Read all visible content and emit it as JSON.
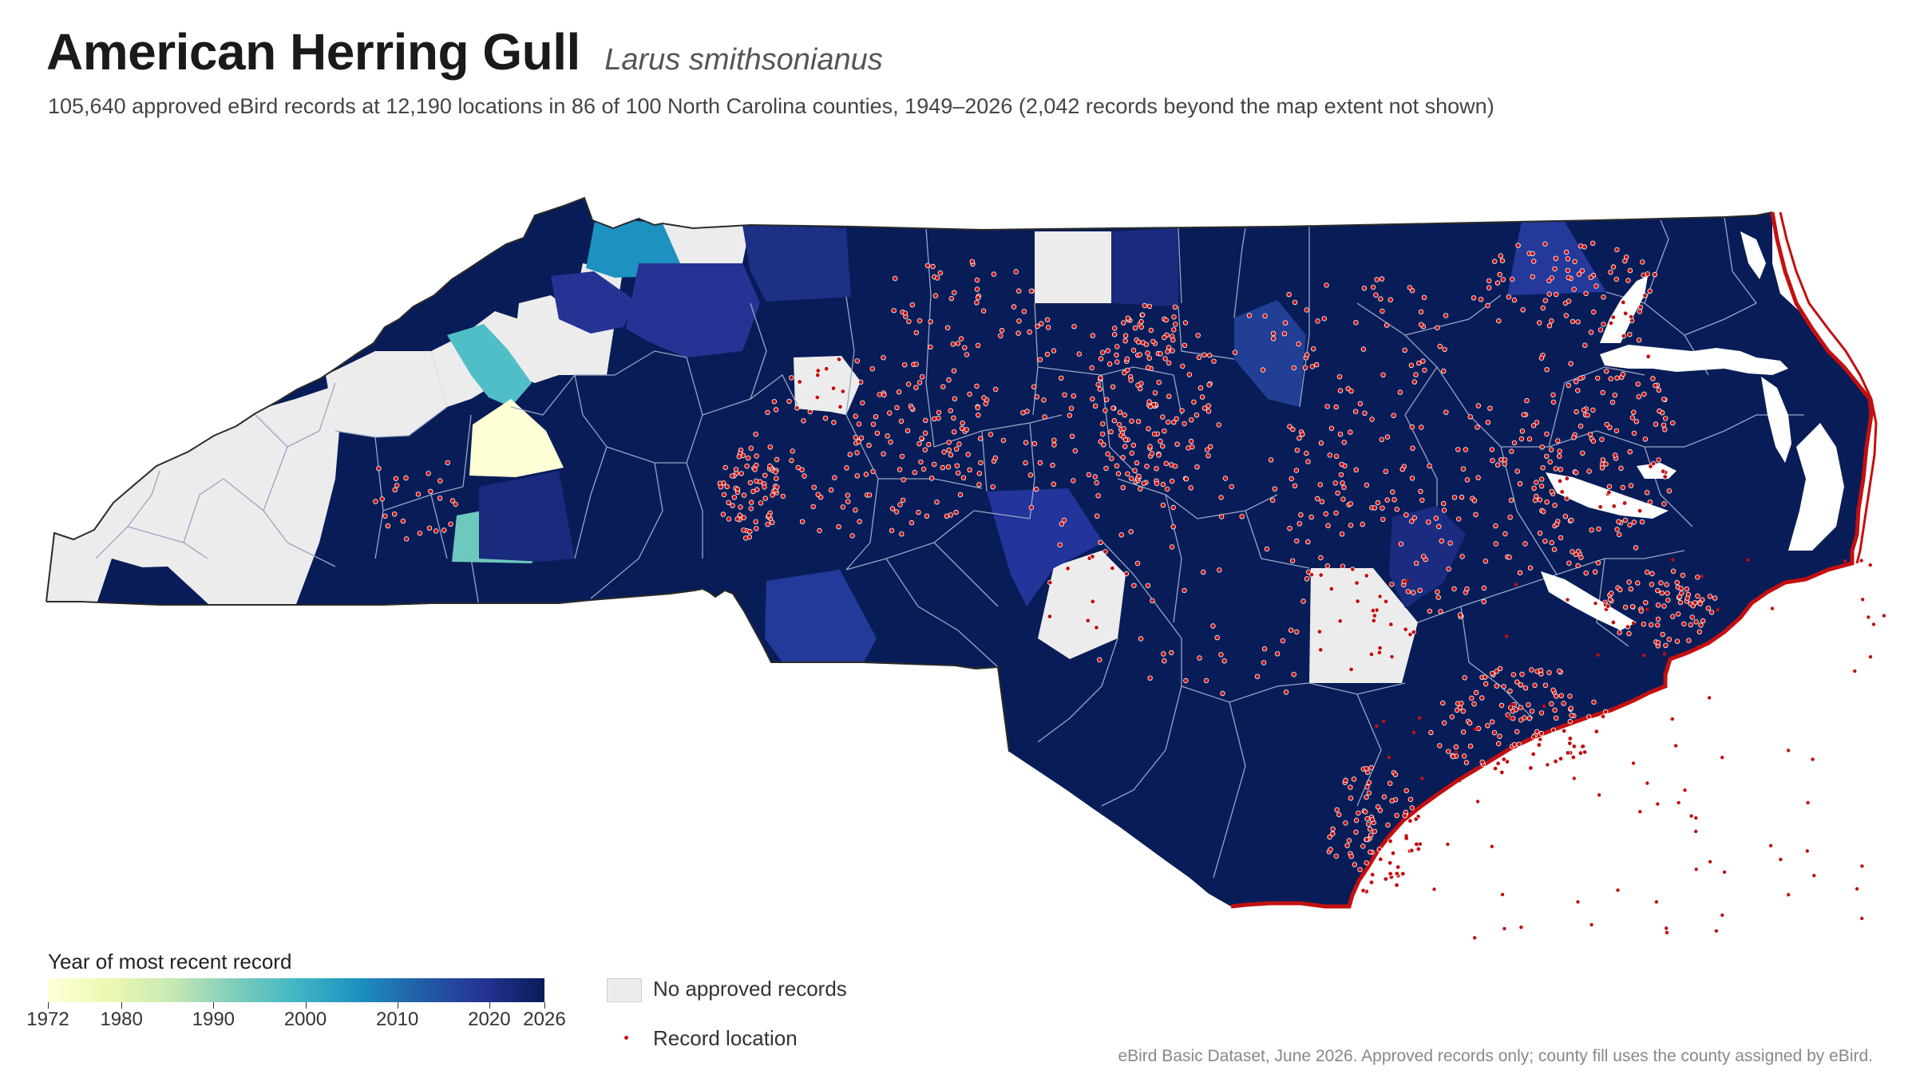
{
  "title": "American Herring Gull",
  "scientific_name": "Larus smithsonianus",
  "subtitle": "105,640 approved eBird records at 12,190 locations in 86 of 100 North Carolina counties, 1949–2026 (2,042 records beyond the map extent not shown)",
  "legend": {
    "title": "Year of most recent record",
    "ticks": [
      "1972",
      "1980",
      "1990",
      "2000",
      "2010",
      "2020",
      "2026"
    ],
    "tick_values": [
      1972,
      1980,
      1990,
      2000,
      2010,
      2020,
      2026
    ],
    "range": [
      1972,
      2026
    ],
    "na_label": "No approved records",
    "record_label": "Record location"
  },
  "source": "eBird Basic Dataset, June 2026. Approved records only; county fill uses the county assigned by eBird.",
  "colors": {
    "no_records": "#ececec",
    "record_dot": "#c40f0f",
    "most_recent": "#081d58",
    "scale": [
      "#ffffd9",
      "#edf8b1",
      "#c7e9b4",
      "#7fcdbb",
      "#41b6c4",
      "#1d91c0",
      "#225ea8",
      "#253494",
      "#081d58"
    ]
  }
}
